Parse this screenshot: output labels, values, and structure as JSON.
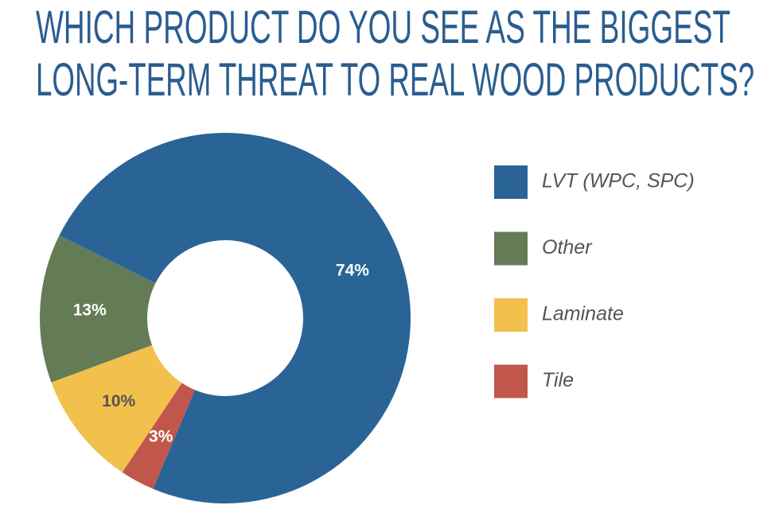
{
  "chart_data": {
    "type": "donut",
    "title": [
      "WHICH PRODUCT DO YOU SEE AS THE BIGGEST",
      "LONG-TERM THREAT TO REAL WOOD PRODUCTS?"
    ],
    "categories": [
      "LVT (WPC, SPC)",
      "Other",
      "Laminate",
      "Tile"
    ],
    "values": [
      74,
      13,
      10,
      3
    ],
    "value_labels": [
      "74%",
      "13%",
      "10%",
      "3%"
    ],
    "colors": [
      "#2a6496",
      "#647c56",
      "#f2c04c",
      "#c0574a"
    ],
    "legend": "right"
  }
}
